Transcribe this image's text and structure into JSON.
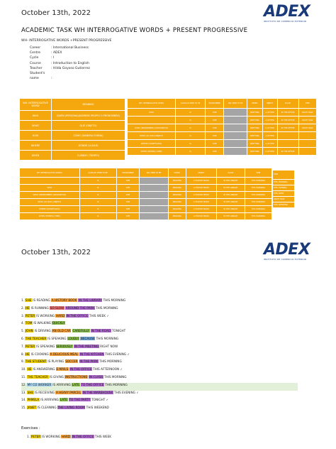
{
  "page1": {
    "date": "October 13th, 2022",
    "logo": "ADEX",
    "logo_sub": "INSTITUTO DE COMERCIO EXTERIOR",
    "title": "ACADEMIC TASK WH INTERROGATIVE WORDS + PRESENT PROGRESSIVE",
    "subtitle": "WH- INTERROGATIVE WORDS +PRESENT PROGRESSIVE",
    "info": [
      {
        "k": "Career",
        "v": ":   International Business"
      },
      {
        "k": "Centre",
        "v": ":   ADEX"
      },
      {
        "k": "Cycle",
        "v": ":        I"
      },
      {
        "k": "Course",
        "v": ":   Introduction to English"
      },
      {
        "k": "Teacher",
        "v": ":   Hilda Goyoso Gutierrez"
      },
      {
        "k": "Student's name",
        "v": ":"
      }
    ]
  },
  "table1": {
    "headers": [
      "WH- INTERROGATIVE WORD",
      "MEANING"
    ],
    "rows": [
      [
        "WHO",
        "QUIÉN (PERSONA)(NOMBRE PROPIO O PRONOMBRE)"
      ],
      [
        "WHAT",
        "QUÉ (OBJETO)"
      ],
      [
        "HOW",
        "CÓMO (MANERA FORMA)"
      ],
      [
        "WHERE",
        "DÓNDE (LUGAR)"
      ],
      [
        "WHEN",
        "CUÁNDO (TIEMPO)"
      ]
    ]
  },
  "table2": {
    "headers": [
      "WH- INTERROGATIVE WORD",
      "AUXILIAR VERB TO BE",
      "PRONOMBRE",
      "ING VERB TO BE",
      "VERBO",
      "OBJECT",
      "PLACE",
      "TIME"
    ],
    "rows": [
      [
        "WHO",
        "IS",
        "SHE",
        "",
        "WRITTING",
        "A LETTER",
        "IN THE OFFICE",
        "RIGHT NOW"
      ],
      [
        "",
        "IS",
        "SHE",
        "",
        "WRITTING",
        "A LETTER",
        "IN THE OFFICE",
        "RIGHT NOW"
      ],
      [
        "WHAT (pronombre) (sustantivo)",
        "IS",
        "SHE",
        "",
        "WRITTING",
        "A LETTER",
        "IN THE OFFICE",
        "RIGHT NOW"
      ],
      [
        "WHAT (lo que) (object)",
        "IS",
        "SHE",
        "",
        "WRITTING",
        "A LETTER",
        "",
        ""
      ],
      [
        "WHERE (significado)",
        "IS",
        "SHE",
        "",
        "WRITTING",
        "A LETTER",
        "",
        ""
      ],
      [
        "WHEN (tiempo) (time)",
        "IS",
        "SHE",
        "",
        "WRITTING",
        "A LETTER",
        "IN THE OFFICE",
        ""
      ]
    ]
  },
  "table3": {
    "headers": [
      "WH INTERROGATIVE WORDS",
      "AUXILIAR VERB TO BE",
      "PRONOMBRE",
      "ING VERB TO BE",
      "VERBO",
      "OBJECT",
      "PLACE",
      "TIME"
    ],
    "rows": [
      [
        "",
        "IS",
        "SHE",
        "",
        "READING",
        "A HISTORY BOOK",
        "IN THE LIBRARY",
        "THIS MORNING"
      ],
      [
        "WHO",
        "IS",
        "SHE",
        "",
        "READING",
        "A HISTORY BOOK",
        "IN THE LIBRARY",
        "THIS MORNING"
      ],
      [
        "WHAT (pronombre) (sustantivo)",
        "IS",
        "SHE",
        "",
        "READING",
        "A HISTORY BOOK",
        "IN THE LIBRARY",
        "THIS MORNING"
      ],
      [
        "WHAT (lo que) (object)",
        "IS",
        "SHE",
        "",
        "READING",
        "A HISTORY BOOK",
        "IN THE LIBRARY",
        "THIS MORNING"
      ],
      [
        "WHERE (significado)",
        "IS",
        "SHE",
        "",
        "READING",
        "A HISTORY BOOK",
        "IN THE LIBRARY",
        "THIS MORNING"
      ],
      [
        "WHEN (tiempo) (time)",
        "IS",
        "SHE",
        "",
        "READING",
        "A HISTORY BOOK",
        "IN THE LIBRARY",
        "THIS MORNING"
      ]
    ],
    "side_header": "TIME",
    "side": [
      "THIS MORNING",
      "THIS EVENING",
      "THIS WEEK",
      "RIGHT NOW",
      "THIS WEEKEND"
    ]
  },
  "page2": {
    "date": "October 13th, 2022",
    "logo": "ADEX",
    "logo_sub": "INSTITUTO DE COMERCIO EXTERIOR",
    "sentences": [
      [
        [
          "1. ",
          ""
        ],
        [
          "SHE",
          "hlY"
        ],
        [
          " IS READING ",
          ""
        ],
        [
          "A HISTORY BOOK",
          "hlO"
        ],
        [
          " ",
          ""
        ],
        [
          "IN THE LIBRARY",
          "hlP"
        ],
        [
          " THIS MORNING",
          ""
        ]
      ],
      [
        [
          "2. ",
          ""
        ],
        [
          "HE",
          "hlY"
        ],
        [
          " IS RUNNING ",
          ""
        ],
        [
          "SO SLOW",
          "hlR"
        ],
        [
          " ",
          ""
        ],
        [
          "AROUND THE PARK",
          "hlP"
        ],
        [
          " THIS MORNING",
          ""
        ]
      ],
      [
        [
          "3. ",
          ""
        ],
        [
          "PETER",
          "hlY"
        ],
        [
          " IS WORKING ",
          ""
        ],
        [
          "HARD",
          "hlO"
        ],
        [
          " ",
          ""
        ],
        [
          "IN THE OFFICE",
          "hlP"
        ],
        [
          " THIS WEEK ✓",
          ""
        ]
      ],
      [
        [
          "4. ",
          ""
        ],
        [
          "TOM",
          "hlY"
        ],
        [
          " IS WALKING ",
          ""
        ],
        [
          "QUICKLY",
          "hlG"
        ]
      ],
      [
        [
          "5. ",
          ""
        ],
        [
          "JOHN",
          "hlY"
        ],
        [
          " IS DRIVING ",
          ""
        ],
        [
          "AN OLD CAR",
          "hlO"
        ],
        [
          " ",
          ""
        ],
        [
          "CAREFULLY",
          "hlG"
        ],
        [
          " ",
          ""
        ],
        [
          "IN THE ROAD",
          "hlP"
        ],
        [
          " TONIGHT",
          ""
        ]
      ],
      [
        [
          "6. ",
          ""
        ],
        [
          "THE TEACHER",
          "hlY"
        ],
        [
          " IS SPEAKING ",
          ""
        ],
        [
          "LOUDLY",
          "hlG"
        ],
        [
          " ",
          ""
        ],
        [
          "BECAUSE",
          "hlB"
        ],
        [
          " THIS MORNING",
          ""
        ]
      ],
      [
        [
          "7. ",
          ""
        ],
        [
          "PETER",
          "hlY"
        ],
        [
          " IS SPEAKING ",
          ""
        ],
        [
          "SERIOUSLY",
          "hlG"
        ],
        [
          " ",
          ""
        ],
        [
          "IN THE MEETING",
          "hlP"
        ],
        [
          " RIGHT NOW",
          ""
        ]
      ],
      [
        [
          "8. ",
          ""
        ],
        [
          "HE",
          "hlY"
        ],
        [
          " IS COOKING ",
          ""
        ],
        [
          "A DELICIOUS MEAL",
          "hlO"
        ],
        [
          " ",
          ""
        ],
        [
          "IN THE KITCHEN",
          "hlP"
        ],
        [
          " THIS EVENING ✓",
          ""
        ]
      ],
      [
        [
          "9. ",
          ""
        ],
        [
          "THE STUDENT",
          "hlY"
        ],
        [
          " IS PLAYING ",
          ""
        ],
        [
          "SOCCER",
          "hlO"
        ],
        [
          " ",
          ""
        ],
        [
          "IN THE PARK",
          "hlP"
        ],
        [
          " THIS MORNING",
          ""
        ]
      ],
      [
        [
          "10. ",
          ""
        ],
        [
          "HE",
          "hlY"
        ],
        [
          " IS ANSWERING ",
          ""
        ],
        [
          "E-MAILS",
          "hlO"
        ],
        [
          " ",
          ""
        ],
        [
          "IN THE OFFICE",
          "hlP"
        ],
        [
          " THIS AFTERNOON ✓",
          ""
        ]
      ],
      [
        [
          "11. ",
          ""
        ],
        [
          "THE TEACHER",
          "hlY"
        ],
        [
          " IS GIVING ",
          ""
        ],
        [
          "INSTRUCTIONS",
          "hlO"
        ],
        [
          " ",
          ""
        ],
        [
          "IN CLASS",
          "hlP"
        ],
        [
          " THIS MORNING",
          ""
        ]
      ],
      [
        [
          "12. ",
          ""
        ],
        [
          "MY CO WORKER",
          "hlLB"
        ],
        [
          " IS ARRIVING ",
          ""
        ],
        [
          "LATE",
          "hlG"
        ],
        [
          " ",
          ""
        ],
        [
          "TO THE OFFICE",
          "hlP"
        ],
        [
          " THIS MORNING",
          ""
        ]
      ],
      [
        [
          "13. ",
          ""
        ],
        [
          "SHE",
          "hlY"
        ],
        [
          " IS RECEIVING ",
          ""
        ],
        [
          "A HEAVY PARCEL",
          "hlO"
        ],
        [
          " ",
          ""
        ],
        [
          "IN THE WAREHOUSE",
          "hlP"
        ],
        [
          " THIS EVENING ✓",
          ""
        ]
      ],
      [
        [
          "14. ",
          ""
        ],
        [
          "PAMELA",
          "hlY"
        ],
        [
          " IS ARRIVING ",
          ""
        ],
        [
          "LATE",
          "hlG"
        ],
        [
          " ",
          ""
        ],
        [
          "TO THE PARTY",
          "hlP"
        ],
        [
          " TONIGHT ✓",
          ""
        ]
      ],
      [
        [
          "15. ",
          ""
        ],
        [
          "JANET",
          "hlY"
        ],
        [
          " IS CLEANING ",
          ""
        ],
        [
          "THE LIVING ROOM",
          "hlP"
        ],
        [
          " THIS WEEKEND",
          ""
        ]
      ]
    ],
    "exercises_label": "Exercises :",
    "exercise1": [
      [
        "1. ",
        ""
      ],
      [
        "PETER",
        "hlY"
      ],
      [
        " IS WORKING ",
        ""
      ],
      [
        "HARD",
        "hlO"
      ],
      [
        " ",
        ""
      ],
      [
        "IN THE OFFICE",
        "hlP"
      ],
      [
        " THIS WEEK",
        ""
      ]
    ]
  }
}
